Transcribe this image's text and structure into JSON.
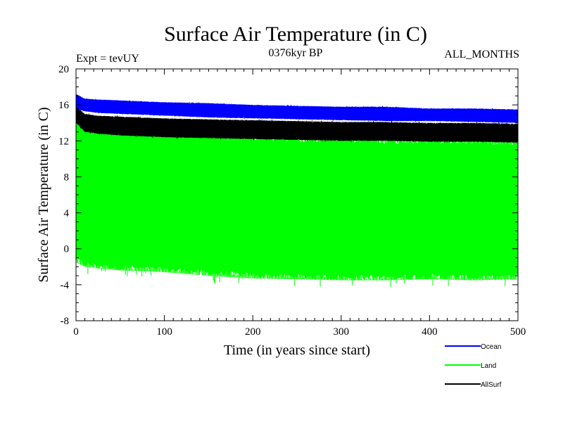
{
  "chart_data": {
    "type": "line",
    "title": "Surface Air Temperature (in C)",
    "subtitle_left": "Expt = tevUY",
    "subtitle_center": "0376kyr BP",
    "subtitle_right": "ALL_MONTHS",
    "xlabel": "Time (in years since start)",
    "ylabel": "Surface Air Temperature (in C)",
    "xlim": [
      0,
      500
    ],
    "ylim": [
      -8,
      20
    ],
    "x_ticks": [
      0,
      100,
      200,
      300,
      400,
      500
    ],
    "y_ticks": [
      -8,
      -4,
      0,
      4,
      8,
      12,
      16,
      20
    ],
    "grid": false,
    "legend_position": "bottom-right",
    "series": [
      {
        "name": "Ocean",
        "color": "#0000ff",
        "x": [
          0,
          10,
          25,
          50,
          75,
          100,
          150,
          200,
          250,
          300,
          350,
          400,
          450,
          500
        ],
        "max": [
          17.2,
          16.7,
          16.6,
          16.5,
          16.4,
          16.3,
          16.2,
          16.0,
          15.9,
          15.8,
          15.8,
          15.6,
          15.6,
          15.5
        ],
        "min": [
          15.5,
          15.3,
          15.1,
          15.0,
          14.9,
          14.8,
          14.6,
          14.5,
          14.4,
          14.3,
          14.2,
          14.2,
          14.1,
          14.0
        ]
      },
      {
        "name": "Land",
        "color": "#00ff00",
        "x": [
          0,
          10,
          25,
          50,
          75,
          100,
          150,
          200,
          250,
          300,
          350,
          400,
          450,
          500
        ],
        "max": [
          15.2,
          14.0,
          13.5,
          13.3,
          13.2,
          13.1,
          12.9,
          12.6,
          12.5,
          12.4,
          12.3,
          12.2,
          12.2,
          12.1
        ],
        "min": [
          -1.5,
          -2.0,
          -2.2,
          -2.4,
          -2.5,
          -2.6,
          -3.0,
          -3.3,
          -3.4,
          -3.5,
          -3.5,
          -3.4,
          -3.5,
          -3.4
        ]
      },
      {
        "name": "AllSurf",
        "color": "#000000",
        "x": [
          0,
          10,
          25,
          50,
          75,
          100,
          150,
          200,
          250,
          300,
          350,
          400,
          450,
          500
        ],
        "max": [
          15.8,
          15.0,
          14.8,
          14.7,
          14.6,
          14.5,
          14.4,
          14.3,
          14.2,
          14.1,
          14.1,
          14.0,
          14.0,
          13.9
        ],
        "min": [
          14.0,
          13.0,
          12.8,
          12.6,
          12.5,
          12.4,
          12.3,
          12.2,
          12.1,
          12.0,
          12.0,
          11.9,
          11.9,
          11.8
        ]
      }
    ]
  }
}
